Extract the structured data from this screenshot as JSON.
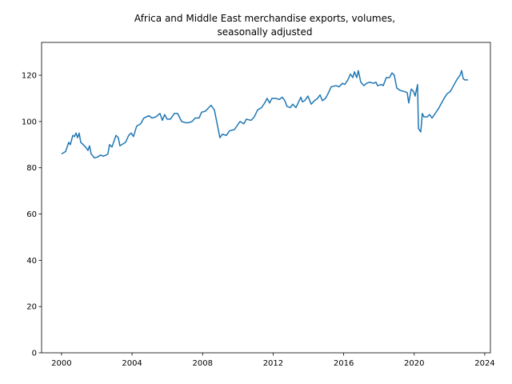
{
  "chart_data": {
    "type": "line",
    "title": [
      "Africa and Middle East merchandise exports, volumes,",
      "seasonally adjusted"
    ],
    "x": [
      2000.0,
      2000.23,
      2000.41,
      2000.5,
      2000.64,
      2000.73,
      2000.82,
      2000.91,
      2001.0,
      2001.09,
      2001.23,
      2001.36,
      2001.5,
      2001.59,
      2001.68,
      2001.86,
      2002.0,
      2002.22,
      2002.36,
      2002.54,
      2002.63,
      2002.72,
      2002.86,
      2003.09,
      2003.22,
      2003.31,
      2003.63,
      2003.81,
      2003.95,
      2004.08,
      2004.26,
      2004.49,
      2004.67,
      2004.95,
      2005.13,
      2005.35,
      2005.58,
      2005.72,
      2005.85,
      2005.99,
      2006.17,
      2006.4,
      2006.58,
      2006.81,
      2007.03,
      2007.21,
      2007.4,
      2007.58,
      2007.8,
      2007.94,
      2008.17,
      2008.35,
      2008.48,
      2008.67,
      2008.85,
      2008.98,
      2009.12,
      2009.35,
      2009.53,
      2009.8,
      2009.94,
      2010.12,
      2010.34,
      2010.48,
      2010.75,
      2010.93,
      2011.12,
      2011.34,
      2011.52,
      2011.66,
      2011.8,
      2011.93,
      2012.16,
      2012.34,
      2012.52,
      2012.66,
      2012.79,
      2012.98,
      2013.11,
      2013.29,
      2013.57,
      2013.66,
      2013.79,
      2013.97,
      2014.16,
      2014.34,
      2014.52,
      2014.66,
      2014.79,
      2014.97,
      2015.11,
      2015.29,
      2015.56,
      2015.74,
      2015.93,
      2016.06,
      2016.24,
      2016.38,
      2016.52,
      2016.61,
      2016.74,
      2016.83,
      2016.97,
      2017.15,
      2017.29,
      2017.47,
      2017.7,
      2017.83,
      2017.92,
      2018.15,
      2018.24,
      2018.42,
      2018.6,
      2018.74,
      2018.87,
      2019.01,
      2019.19,
      2019.42,
      2019.6,
      2019.69,
      2019.83,
      2019.96,
      2020.05,
      2020.19,
      2020.24,
      2020.37,
      2020.46,
      2020.55,
      2020.74,
      2020.87,
      2021.01,
      2021.19,
      2021.37,
      2021.55,
      2021.73,
      2021.87,
      2022.05,
      2022.23,
      2022.41,
      2022.6,
      2022.69,
      2022.78,
      2022.87,
      2023.05
    ],
    "series": [
      {
        "color": "#1f77b4",
        "values": [
          86,
          87,
          91,
          90,
          94,
          93.5,
          95,
          93,
          95,
          91,
          90,
          89,
          87.5,
          89.5,
          86,
          84.3,
          84.5,
          85.5,
          85,
          85.5,
          86,
          90,
          89,
          94,
          93,
          89.5,
          91,
          94,
          95,
          93.5,
          98,
          99,
          101.5,
          102.5,
          101.5,
          102,
          103.5,
          100.5,
          103,
          101,
          101,
          103.5,
          103.5,
          100,
          99.5,
          99.5,
          100,
          101.5,
          101.5,
          104,
          104.5,
          106,
          107,
          105,
          98,
          93,
          94.5,
          94,
          96,
          96.5,
          98,
          100,
          99,
          101,
          100.5,
          102,
          105,
          106,
          108,
          110,
          108,
          110,
          110,
          109.5,
          110.5,
          109,
          106.5,
          106,
          107.5,
          106,
          110.5,
          108.5,
          109,
          111,
          107.5,
          109,
          110,
          111.5,
          109,
          110,
          112,
          115,
          115.5,
          115,
          116.5,
          116,
          118,
          120.5,
          119,
          121.5,
          119,
          122,
          117,
          115.5,
          116.5,
          117,
          116.5,
          117,
          115.5,
          116,
          115.5,
          119,
          119,
          121,
          120,
          114.5,
          113.5,
          113,
          112.5,
          108,
          114,
          113,
          111,
          116,
          97,
          95.5,
          103.5,
          102,
          102,
          103,
          101.5,
          103.5,
          105.5,
          108,
          110.5,
          112,
          113,
          115.5,
          118,
          120,
          122,
          118.5,
          118,
          118
        ]
      }
    ],
    "xlim": [
      1998.87,
      2024.32
    ],
    "xticks": [
      2000,
      2004,
      2008,
      2012,
      2016,
      2020,
      2024
    ],
    "ylim": [
      0,
      134.2
    ],
    "yticks": [
      0,
      20,
      40,
      60,
      80,
      100,
      120
    ],
    "grid": false
  }
}
